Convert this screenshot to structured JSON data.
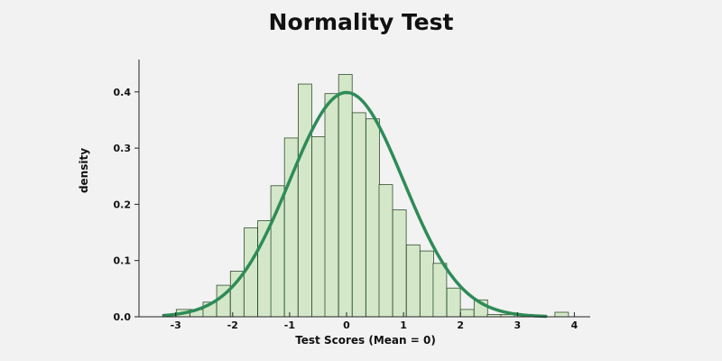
{
  "chart_data": {
    "type": "bar",
    "title": "Normality Test",
    "xlabel": "Test Scores (Mean = 0)",
    "ylabel": "density",
    "xlim": [
      -3.5,
      4.2
    ],
    "ylim": [
      0,
      0.45
    ],
    "xticks": [
      -3,
      -2,
      -1,
      0,
      1,
      2,
      3,
      4
    ],
    "yticks": [
      0.0,
      0.1,
      0.2,
      0.3,
      0.4
    ],
    "ytick_labels": [
      "0.0",
      "0.1",
      "0.2",
      "0.3",
      "0.4"
    ],
    "grid": false,
    "bin_width": 0.2376,
    "histogram": [
      {
        "x0": -3.23,
        "density": 0.004
      },
      {
        "x0": -2.99,
        "density": 0.013
      },
      {
        "x0": -2.75,
        "density": 0.013
      },
      {
        "x0": -2.52,
        "density": 0.026
      },
      {
        "x0": -2.28,
        "density": 0.056
      },
      {
        "x0": -2.04,
        "density": 0.081
      },
      {
        "x0": -1.8,
        "density": 0.158
      },
      {
        "x0": -1.56,
        "density": 0.171
      },
      {
        "x0": -1.33,
        "density": 0.233
      },
      {
        "x0": -1.09,
        "density": 0.318
      },
      {
        "x0": -0.85,
        "density": 0.414
      },
      {
        "x0": -0.61,
        "density": 0.32
      },
      {
        "x0": -0.38,
        "density": 0.397
      },
      {
        "x0": -0.14,
        "density": 0.431
      },
      {
        "x0": 0.1,
        "density": 0.363
      },
      {
        "x0": 0.34,
        "density": 0.352
      },
      {
        "x0": 0.57,
        "density": 0.235
      },
      {
        "x0": 0.81,
        "density": 0.19
      },
      {
        "x0": 1.05,
        "density": 0.128
      },
      {
        "x0": 1.29,
        "density": 0.117
      },
      {
        "x0": 1.52,
        "density": 0.095
      },
      {
        "x0": 1.76,
        "density": 0.051
      },
      {
        "x0": 2.0,
        "density": 0.013
      },
      {
        "x0": 2.24,
        "density": 0.03
      },
      {
        "x0": 2.47,
        "density": 0.004
      },
      {
        "x0": 2.71,
        "density": 0.004
      },
      {
        "x0": 3.66,
        "density": 0.008
      }
    ],
    "curve": {
      "type": "normal_pdf",
      "mean": 0.0,
      "std": 1.0,
      "x_range": [
        -3.2,
        3.5
      ]
    },
    "colors": {
      "background": "#f2f2f2",
      "bar_fill": "#d4e8c9",
      "bar_stroke": "#2f4f2f",
      "curve": "#2e8b57",
      "axis": "#222222"
    }
  }
}
